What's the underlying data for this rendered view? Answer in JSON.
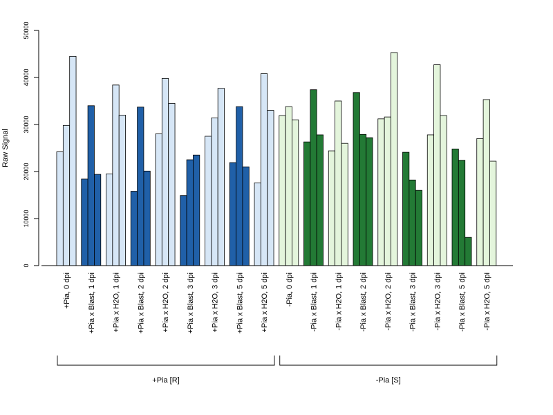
{
  "chart_data": {
    "type": "bar",
    "ylabel": "Raw Signal",
    "ylim": [
      0,
      50000
    ],
    "yticks": [
      0,
      10000,
      20000,
      30000,
      40000,
      50000
    ],
    "grid": false,
    "categories": [
      "+Pia, 0 dpi",
      "+Pia x Blast, 1 dpi",
      "+Pia x H2O, 1 dpi",
      "+Pia x Blast, 2 dpi",
      "+Pia x H2O, 2 dpi",
      "+Pia x Blast, 3 dpi",
      "+Pia x H2O, 3 dpi",
      "+Pia x Blast, 5 dpi",
      "+Pia x H2O, 5 dpi",
      "-Pia, 0 dpi",
      "-Pia x Blast, 1 dpi",
      "-Pia x H2O, 1 dpi",
      "-Pia x Blast, 2 dpi",
      "-Pia x H2O, 2 dpi",
      "-Pia x Blast, 3 dpi",
      "-Pia x H2O, 3 dpi",
      "-Pia x Blast, 5 dpi",
      "-Pia x H2O, 5 dpi"
    ],
    "replicates": [
      [
        24200,
        29800,
        44500
      ],
      [
        18400,
        34000,
        19400
      ],
      [
        19500,
        38400,
        32000
      ],
      [
        15800,
        33700,
        20100
      ],
      [
        28000,
        39800,
        34500
      ],
      [
        14900,
        22500,
        23500
      ],
      [
        27500,
        31400,
        37700
      ],
      [
        21900,
        33800,
        21000
      ],
      [
        17600,
        40800,
        33000
      ],
      [
        31900,
        33800,
        31000
      ],
      [
        26300,
        37400,
        27800
      ],
      [
        24400,
        35000,
        26000
      ],
      [
        36800,
        27900,
        27200
      ],
      [
        31200,
        31600,
        45300
      ],
      [
        24100,
        18200,
        16000
      ],
      [
        27800,
        42700,
        31900
      ],
      [
        24800,
        22400,
        6000
      ],
      [
        27000,
        35300,
        22200
      ]
    ],
    "bar_colors": [
      "#d6e6f6",
      "#2060a8",
      "#d6e6f6",
      "#2060a8",
      "#d6e6f6",
      "#2060a8",
      "#d6e6f6",
      "#2060a8",
      "#d6e6f6",
      "#e4f5dc",
      "#237a35",
      "#e4f5dc",
      "#237a35",
      "#e4f5dc",
      "#237a35",
      "#e4f5dc",
      "#237a35",
      "#e4f5dc"
    ],
    "groups": [
      {
        "label": "+Pia [R]",
        "first": 0,
        "last": 8
      },
      {
        "label": "-Pia [S]",
        "first": 9,
        "last": 17
      }
    ]
  }
}
